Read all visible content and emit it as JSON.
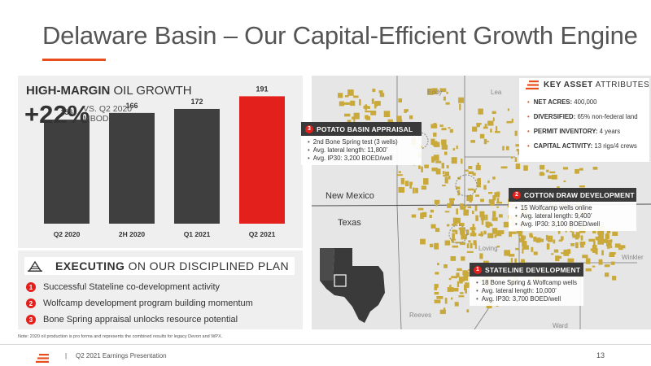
{
  "slide": {
    "title": "Delaware Basin – Our Capital-Efficient Growth Engine",
    "footnote": "Note: 2020 oil production is pro forma and represents the combined results for legacy Devon and WPX.",
    "footer_sep": "|",
    "footer_text": "Q2 2021 Earnings Presentation",
    "page_number": "13"
  },
  "chart_header": {
    "bold": "HIGH-MARGIN",
    "light": " OIL GROWTH",
    "growth": "+22%",
    "growth_sub1": "VS. Q2 2020",
    "growth_sub2": "MBOD"
  },
  "chart_data": {
    "type": "bar",
    "categories": [
      "Q2 2020",
      "2H 2020",
      "Q1 2021",
      "Q2 2021"
    ],
    "values": [
      156,
      166,
      172,
      191
    ],
    "colors": [
      "#3f3f3f",
      "#3f3f3f",
      "#3f3f3f",
      "#e4201c"
    ],
    "ylim": [
      0,
      200
    ],
    "title": "",
    "xlabel": "",
    "ylabel": ""
  },
  "executing": {
    "title_bold": "EXECUTING",
    "title_light": " ON OUR DISCIPLINED PLAN",
    "items": [
      {
        "num": "1",
        "text": "Successful Stateline co-development activity"
      },
      {
        "num": "2",
        "text": "Wolfcamp development program building momentum"
      },
      {
        "num": "3",
        "text": "Bone Spring appraisal unlocks resource potential"
      }
    ]
  },
  "map": {
    "counties": {
      "eddy": "Eddy",
      "lea": "Lea",
      "loving": "Loving",
      "winkler": "Winkler",
      "reeves": "Reeves",
      "ward": "Ward"
    },
    "states": {
      "nm": "New Mexico",
      "tx": "Texas"
    },
    "potato_basin": {
      "num": "3",
      "title": "POTATO BASIN APPRAISAL",
      "bullets": [
        "2nd Bone Spring test (3 wells)",
        "Avg. lateral length: 11,800’",
        "Avg. IP30: 3,200 BOED/well"
      ]
    },
    "cotton_draw": {
      "num": "2",
      "title": "COTTON DRAW DEVELOPMENT",
      "bullets": [
        "15 Wolfcamp wells online",
        "Avg. lateral length: 9,400’",
        "Avg. IP30: 3,100 BOED/well"
      ]
    },
    "stateline": {
      "num": "1",
      "title": "STATELINE DEVELOPMENT",
      "bullets": [
        "18 Bone Spring & Wolfcamp wells",
        "Avg. lateral length: 10,000’",
        "Avg. IP30: 3,700 BOED/well"
      ]
    }
  },
  "key_assets": {
    "title_bold": "KEY ASSET",
    "title_light": "ATTRIBUTES",
    "items": [
      {
        "label": "NET ACRES:",
        "value": " 400,000"
      },
      {
        "label": "DIVERSIFIED:",
        "value": " 65% non-federal land"
      },
      {
        "label": "PERMIT INVENTORY:",
        "value": " 4 years"
      },
      {
        "label": "CAPITAL ACTIVITY:",
        "value": " 13 rigs/4 crews"
      }
    ]
  },
  "colors": {
    "accent": "#e84e1b",
    "highlight_bar": "#e4201c",
    "bar": "#3f3f3f",
    "acreage": "#c9a93a",
    "panel_bg": "#efefef",
    "callout_head": "#3a3a3a"
  }
}
